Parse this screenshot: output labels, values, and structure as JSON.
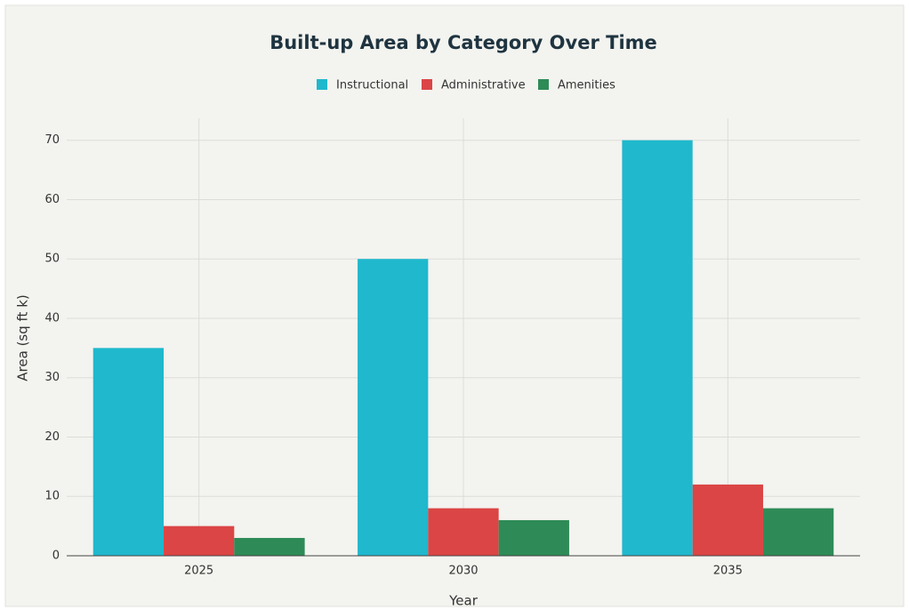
{
  "chart_data": {
    "type": "bar",
    "title": "Built-up Area by Category Over Time",
    "x_label": "Year",
    "y_label": "Area (sq ft k)",
    "categories": [
      "2025",
      "2030",
      "2035"
    ],
    "series": [
      {
        "name": "Instructional",
        "color": "#1fb8cd",
        "values": [
          35,
          50,
          70
        ]
      },
      {
        "name": "Administrative",
        "color": "#db4545",
        "values": [
          5,
          8,
          12
        ]
      },
      {
        "name": "Amenities",
        "color": "#2e8b57",
        "values": [
          3,
          6,
          8
        ]
      }
    ],
    "ylim": [
      0,
      73.7
    ],
    "yticks": [
      0,
      10,
      20,
      30,
      40,
      50,
      60,
      70
    ],
    "grid": true,
    "legend": "top"
  }
}
